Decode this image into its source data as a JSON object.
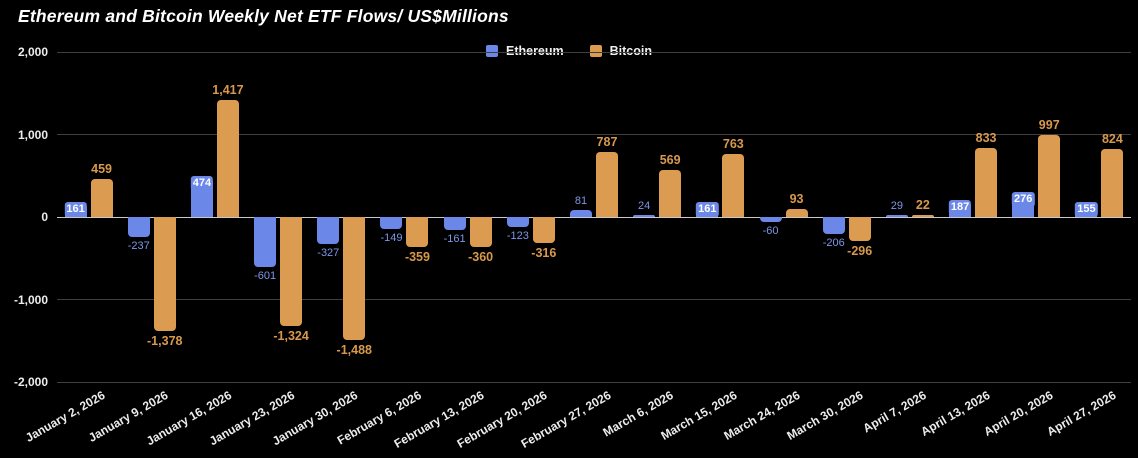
{
  "title": "Ethereum and Bitcoin Weekly Net ETF Flows/ US$Millions",
  "legend": {
    "items": [
      {
        "label": "Ethereum",
        "series": "Ethereum"
      },
      {
        "label": "Bitcoin",
        "series": "Bitcoin"
      }
    ]
  },
  "colors": {
    "background": "#000000",
    "ethereum": "#6B87E8",
    "bitcoin": "#DB9B51",
    "ethereum_label_text": "#7E96E8",
    "bitcoin_label_text": "#D8994D",
    "inside_label_text": "#FFFFFF",
    "grid": "#3F3F3F",
    "zero_line": "#C9C9C9",
    "axis_text": "#EDEDED"
  },
  "chart_data": {
    "type": "bar",
    "title": "Ethereum and Bitcoin Weekly Net ETF Flows/ US$Millions",
    "xlabel": "",
    "ylabel": "",
    "categories": [
      "January 2, 2026",
      "January 9, 2026",
      "January 16, 2026",
      "January 23, 2026",
      "January 30, 2026",
      "February 6, 2026",
      "February 13, 2026",
      "February 20, 2026",
      "February 27, 2026",
      "March 6, 2026",
      "March 15, 2026",
      "March 24, 2026",
      "March 30, 2026",
      "April 7, 2026",
      "April 13, 2026",
      "April 20, 2026",
      "April 27, 2026"
    ],
    "series": [
      {
        "name": "Ethereum",
        "values": [
          161,
          -237,
          474,
          -601,
          -327,
          -149,
          -161,
          -123,
          81,
          24,
          161,
          -60,
          -206,
          29,
          187,
          276,
          155
        ]
      },
      {
        "name": "Bitcoin",
        "values": [
          459,
          -1378,
          1417,
          -1324,
          -1488,
          -359,
          -360,
          -316,
          787,
          569,
          763,
          93,
          -296,
          22,
          833,
          997,
          824
        ]
      }
    ],
    "ylim": [
      -2000,
      2000
    ],
    "yticks": [
      {
        "value": 2000,
        "label": "2,000"
      },
      {
        "value": 1000,
        "label": "1,000"
      },
      {
        "value": 0,
        "label": "0"
      },
      {
        "value": -1000,
        "label": "-1,000"
      },
      {
        "value": -2000,
        "label": "-2,000"
      }
    ],
    "grid": true,
    "legend_position": "top"
  }
}
